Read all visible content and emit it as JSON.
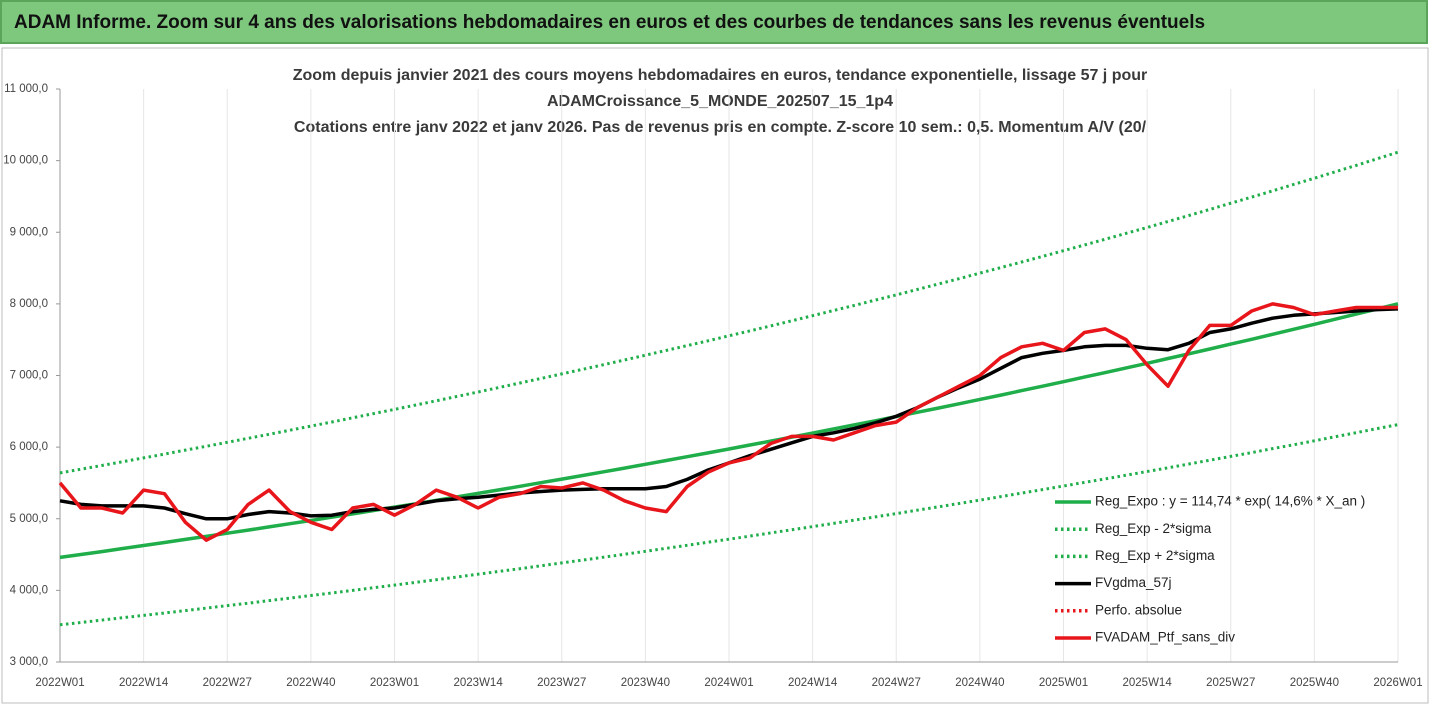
{
  "header": {
    "title": "ADAM Informe. Zoom sur 4 ans des valorisations hebdomadaires en euros et des courbes de tendances sans les revenus éventuels"
  },
  "chart_data": {
    "type": "line",
    "subtitle_lines": [
      "Zoom depuis janvier 2021 des cours moyens hebdomadaires  en euros, tendance exponentielle, lissage 57 j pour",
      "ADAMCroissance_5_MONDE_202507_15_1p4",
      "Cotations entre janv 2022 et janv 2026. Pas de revenus pris en compte. Z-score 10 sem.: 0,5. Momentum A/V (20/"
    ],
    "categories": [
      "2022W01",
      null,
      null,
      null,
      "2022W14",
      null,
      null,
      null,
      "2022W27",
      null,
      null,
      null,
      "2022W40",
      null,
      null,
      null,
      "2023W01",
      null,
      null,
      null,
      "2023W14",
      null,
      null,
      null,
      "2023W27",
      null,
      null,
      null,
      "2023W40",
      null,
      null,
      null,
      "2024W01",
      null,
      null,
      null,
      "2024W14",
      null,
      null,
      null,
      "2024W27",
      null,
      null,
      null,
      "2024W40",
      null,
      null,
      null,
      "2025W01",
      null,
      null,
      null,
      "2025W14",
      null,
      null,
      null,
      "2025W27",
      null,
      null,
      null,
      "2025W40",
      null,
      null,
      null,
      "2026W01"
    ],
    "ylim": [
      3000,
      11000
    ],
    "yticks": [
      {
        "value": 3000,
        "label": "3 000,0"
      },
      {
        "value": 4000,
        "label": "4 000,0"
      },
      {
        "value": 5000,
        "label": "5 000,0"
      },
      {
        "value": 6000,
        "label": "6 000,0"
      },
      {
        "value": 7000,
        "label": "7 000,0"
      },
      {
        "value": 8000,
        "label": "8 000,0"
      },
      {
        "value": 9000,
        "label": "9 000,0"
      },
      {
        "value": 10000,
        "label": "10 000,0"
      },
      {
        "value": 11000,
        "label": "11 000,0"
      }
    ],
    "grid": "x",
    "legend": "lower right",
    "series": [
      {
        "name": "Reg_Expo : y = 114,74 * exp( 14,6% *  X_an )",
        "color": "#1fae4a",
        "dash": "solid",
        "values": [
          4460,
          4501,
          4542,
          4584,
          4626,
          4668,
          4711,
          4754,
          4798,
          4842,
          4886,
          4931,
          4976,
          5022,
          5068,
          5115,
          5162,
          5209,
          5257,
          5305,
          5354,
          5403,
          5453,
          5503,
          5553,
          5604,
          5656,
          5707,
          5760,
          5813,
          5866,
          5920,
          5974,
          6029,
          6084,
          6140,
          6196,
          6253,
          6310,
          6368,
          6427,
          6486,
          6545,
          6605,
          6666,
          6727,
          6789,
          6851,
          6914,
          6977,
          7041,
          7106,
          7171,
          7237,
          7303,
          7370,
          7438,
          7506,
          7575,
          7645,
          7715,
          7786,
          7857,
          7929,
          8001
        ]
      },
      {
        "name": "Reg_Exp - 2*sigma",
        "color": "#1fae4a",
        "dash": "dotted",
        "values": [
          3520,
          3552,
          3585,
          3618,
          3651,
          3684,
          3718,
          3752,
          3787,
          3821,
          3857,
          3892,
          3928,
          3964,
          4000,
          4037,
          4074,
          4111,
          4149,
          4187,
          4226,
          4265,
          4303,
          4343,
          4383,
          4423,
          4463,
          4504,
          4546,
          4588,
          4630,
          4672,
          4715,
          4758,
          4802,
          4846,
          4890,
          4935,
          4981,
          5026,
          5072,
          5119,
          5166,
          5213,
          5261,
          5309,
          5358,
          5407,
          5457,
          5507,
          5557,
          5608,
          5660,
          5712,
          5764,
          5817,
          5870,
          5924,
          5979,
          6033,
          6089,
          6145,
          6201,
          6258,
          6315
        ]
      },
      {
        "name": "Reg_Exp + 2*sigma",
        "color": "#1fae4a",
        "dash": "dotted",
        "values": [
          5640,
          5692,
          5744,
          5797,
          5850,
          5903,
          5958,
          6012,
          6067,
          6123,
          6179,
          6236,
          6293,
          6351,
          6409,
          6468,
          6527,
          6587,
          6647,
          6708,
          6770,
          6832,
          6895,
          6958,
          7022,
          7086,
          7151,
          7217,
          7283,
          7350,
          7417,
          7485,
          7554,
          7623,
          7693,
          7764,
          7835,
          7907,
          7979,
          8053,
          8126,
          8201,
          8276,
          8352,
          8429,
          8506,
          8585,
          8663,
          8742,
          8822,
          8903,
          8985,
          9067,
          9150,
          9234,
          9319,
          9405,
          9491,
          9578,
          9666,
          9754,
          9844,
          9934,
          10025,
          10117
        ]
      },
      {
        "name": "FVgdma_57j",
        "color": "#000000",
        "dash": "solid",
        "values": [
          5250,
          5200,
          5180,
          5180,
          5180,
          5150,
          5070,
          5000,
          5000,
          5060,
          5100,
          5080,
          5040,
          5050,
          5100,
          5130,
          5150,
          5200,
          5250,
          5280,
          5300,
          5330,
          5360,
          5380,
          5400,
          5410,
          5420,
          5420,
          5420,
          5450,
          5550,
          5680,
          5780,
          5880,
          5970,
          6060,
          6150,
          6200,
          6260,
          6340,
          6430,
          6550,
          6700,
          6830,
          6950,
          7100,
          7250,
          7310,
          7350,
          7400,
          7420,
          7420,
          7380,
          7360,
          7450,
          7600,
          7650,
          7730,
          7800,
          7840,
          7860,
          7880,
          7900,
          7920,
          7930
        ]
      },
      {
        "name": "Perfo. absolue",
        "color": "#e8151b",
        "dash": "dotted",
        "values": [
          null,
          null,
          null,
          null,
          null,
          null,
          null,
          null,
          null,
          null,
          null,
          null,
          null,
          null,
          null,
          null,
          null,
          null,
          null,
          null,
          null,
          null,
          null,
          null,
          null,
          null,
          null,
          null,
          null,
          null,
          null,
          null,
          null,
          null,
          null,
          null,
          null,
          null,
          null,
          null,
          null,
          null,
          null,
          null,
          null,
          null,
          null,
          null,
          null,
          null,
          null,
          null,
          null,
          null,
          null,
          null,
          null,
          null,
          null,
          null,
          null,
          null,
          null,
          null,
          null
        ]
      },
      {
        "name": "FVADAM_Ptf_sans_div",
        "color": "#e8151b",
        "dash": "solid",
        "values": [
          5500,
          5150,
          5150,
          5080,
          5400,
          5350,
          4950,
          4700,
          4850,
          5200,
          5400,
          5100,
          4950,
          4850,
          5150,
          5200,
          5050,
          5200,
          5400,
          5300,
          5150,
          5300,
          5350,
          5450,
          5430,
          5500,
          5400,
          5250,
          5150,
          5100,
          5450,
          5650,
          5780,
          5850,
          6050,
          6150,
          6150,
          6100,
          6200,
          6300,
          6350,
          6550,
          6700,
          6850,
          7000,
          7250,
          7400,
          7450,
          7350,
          7600,
          7650,
          7500,
          7150,
          6850,
          7350,
          7700,
          7700,
          7900,
          8000,
          7950,
          7850,
          7900,
          7950,
          7950,
          7950
        ]
      }
    ]
  }
}
